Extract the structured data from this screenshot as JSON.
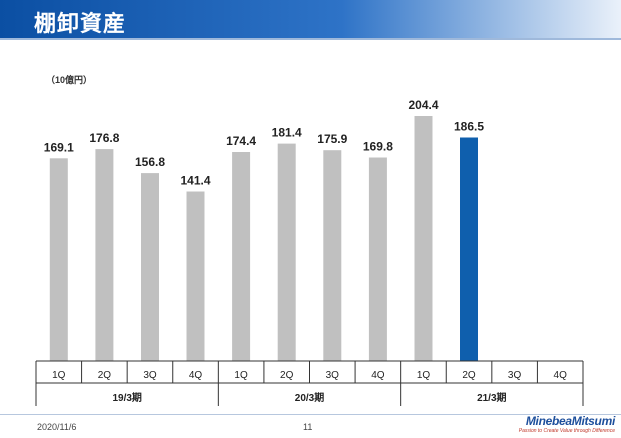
{
  "title": "棚卸資産",
  "footer": {
    "date": "2020/11/6",
    "page": "11",
    "logo_name": "MinebeaMitsumi",
    "logo_tagline": "Passion to Create Value through Difference"
  },
  "colors": {
    "title_bar": "#0b4fa3",
    "bar_default": "#c0c0c0",
    "bar_highlight": "#0f5fad"
  },
  "chart_data": {
    "type": "bar",
    "unit": "（10億円）",
    "title": "",
    "xlabel": "",
    "ylabel": "",
    "ylim": [
      0,
      220
    ],
    "grid": false,
    "legend": "none",
    "categories": [
      "1Q",
      "2Q",
      "3Q",
      "4Q",
      "1Q",
      "2Q",
      "3Q",
      "4Q",
      "1Q",
      "2Q",
      "3Q",
      "4Q"
    ],
    "groups": [
      {
        "label": "19/3期",
        "quarters": [
          "1Q",
          "2Q",
          "3Q",
          "4Q"
        ]
      },
      {
        "label": "20/3期",
        "quarters": [
          "1Q",
          "2Q",
          "3Q",
          "4Q"
        ]
      },
      {
        "label": "21/3期",
        "quarters": [
          "1Q",
          "2Q",
          "3Q",
          "4Q"
        ]
      }
    ],
    "values": [
      169.1,
      176.8,
      156.8,
      141.4,
      174.4,
      181.4,
      175.9,
      169.8,
      204.4,
      186.5,
      null,
      null
    ],
    "labels": [
      "169.1",
      "176.8",
      "156.8",
      "141.4",
      "174.4",
      "181.4",
      "175.9",
      "169.8",
      "204.4",
      "186.5",
      "",
      ""
    ],
    "highlight_index": 9
  }
}
